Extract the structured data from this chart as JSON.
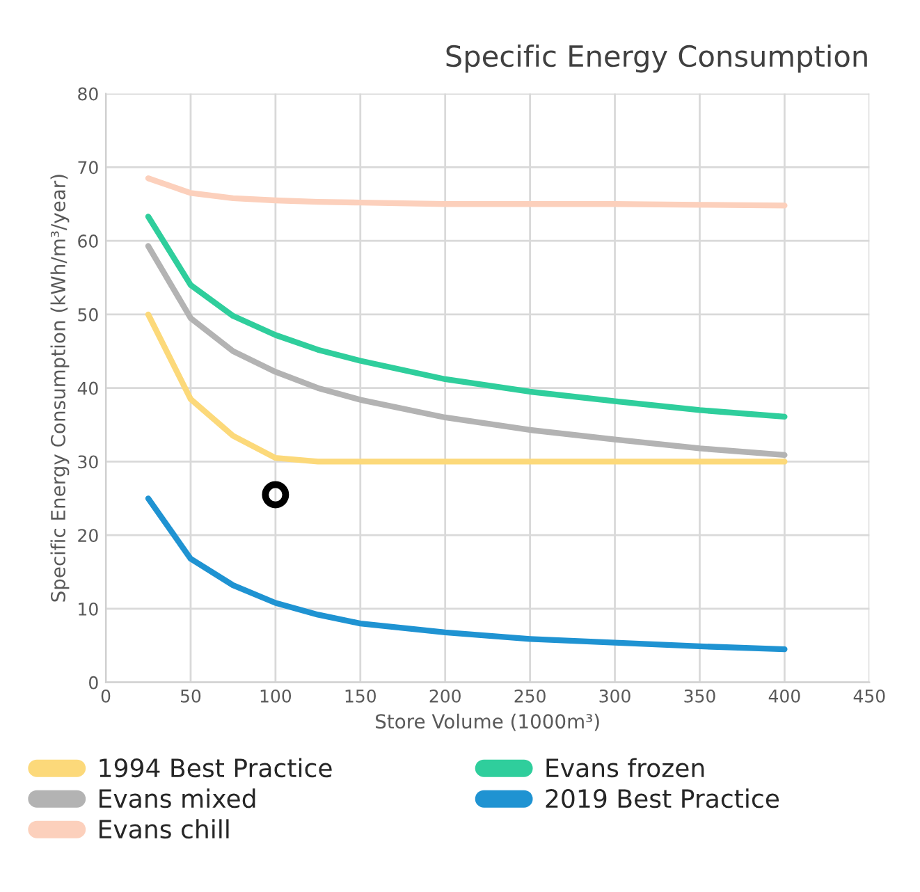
{
  "chart_data": {
    "type": "line",
    "title": "Specific Energy Consumption",
    "xlabel": "Store Volume (1000m³)",
    "ylabel": "Specific Energy Consumption (kWh/m³/year)",
    "x": [
      25,
      50,
      75,
      100,
      125,
      150,
      200,
      250,
      300,
      350,
      400
    ],
    "series": [
      {
        "name": "1994 Best Practice",
        "color": "#fcd97a",
        "values": [
          50,
          38.5,
          33.5,
          30.5,
          30,
          30,
          30,
          30,
          30,
          30,
          30
        ]
      },
      {
        "name": "Evans mixed",
        "color": "#b3b3b3",
        "values": [
          59.3,
          49.5,
          45,
          42.2,
          40,
          38.4,
          36,
          34.3,
          33,
          31.8,
          30.9
        ]
      },
      {
        "name": "Evans chill",
        "color": "#fcd0bc",
        "values": [
          68.5,
          66.5,
          65.8,
          65.5,
          65.3,
          65.2,
          65,
          65,
          65,
          64.9,
          64.8
        ]
      },
      {
        "name": "Evans frozen",
        "color": "#2fce9c",
        "values": [
          63.3,
          54,
          49.8,
          47.2,
          45.2,
          43.7,
          41.2,
          39.5,
          38.2,
          37,
          36.1
        ]
      },
      {
        "name": "2019 Best Practice",
        "color": "#1f93d2",
        "values": [
          25,
          16.8,
          13.2,
          10.8,
          9.2,
          8,
          6.8,
          5.9,
          5.4,
          4.9,
          4.5
        ]
      },
      {
        "type": "scatter",
        "color": "#000000",
        "marker": "circle",
        "x": [
          100
        ],
        "values": [
          25.5
        ]
      }
    ],
    "xlim": [
      0,
      450
    ],
    "xticks": [
      0,
      50,
      100,
      150,
      200,
      250,
      300,
      350,
      400,
      450
    ],
    "ylim": [
      0,
      80
    ],
    "yticks": [
      0,
      10,
      20,
      30,
      40,
      50,
      60,
      70,
      80
    ],
    "grid": true,
    "legend": "bottom",
    "marker": "none",
    "line_style": "solid"
  }
}
